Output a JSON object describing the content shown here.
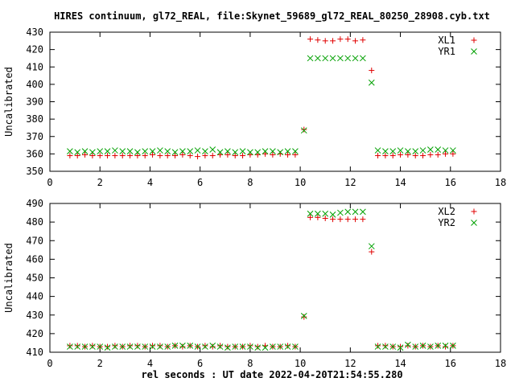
{
  "title": "HIRES continuum, gl72_REAL, file:Skynet_59689_gl72_REAL_80250_28908.cyb.txt",
  "colors": {
    "red": "#e00000",
    "green": "#00a000"
  },
  "chart_data": [
    {
      "type": "scatter",
      "ylabel": "Uncalibrated",
      "xlim": [
        0,
        18
      ],
      "ylim": [
        350,
        430
      ],
      "xticks": [
        0,
        2,
        4,
        6,
        8,
        10,
        12,
        14,
        16,
        18
      ],
      "yticks": [
        350,
        360,
        370,
        380,
        390,
        400,
        410,
        420,
        430
      ],
      "grid": false,
      "legend_position": "top-right",
      "series": [
        {
          "name": "XL1",
          "marker": "plus",
          "color": "#e00000",
          "x": [
            0.8,
            1.1,
            1.4,
            1.7,
            2.0,
            2.3,
            2.6,
            2.9,
            3.2,
            3.5,
            3.8,
            4.1,
            4.4,
            4.7,
            5.0,
            5.3,
            5.6,
            5.9,
            6.2,
            6.5,
            6.8,
            7.1,
            7.4,
            7.7,
            8.0,
            8.3,
            8.6,
            8.9,
            9.2,
            9.5,
            9.8,
            10.15,
            10.4,
            10.7,
            11.0,
            11.3,
            11.6,
            11.9,
            12.2,
            12.5,
            12.85,
            13.1,
            13.4,
            13.7,
            14.0,
            14.3,
            14.6,
            14.9,
            15.2,
            15.5,
            15.8,
            16.1
          ],
          "y": [
            359,
            359,
            359.5,
            359,
            359,
            359,
            359,
            359,
            359,
            359,
            359,
            359.5,
            359,
            359,
            359,
            359.5,
            359,
            358.5,
            359,
            359,
            359.5,
            359.5,
            359,
            359,
            359.5,
            359.5,
            360,
            359.5,
            360,
            359.5,
            359.5,
            374,
            426,
            425.5,
            425,
            425,
            426,
            426,
            425,
            425.5,
            408,
            359,
            359,
            359,
            359.5,
            359.5,
            359,
            359,
            359.5,
            359.5,
            360,
            360
          ]
        },
        {
          "name": "YR1",
          "marker": "cross",
          "color": "#00a000",
          "x": [
            0.8,
            1.1,
            1.4,
            1.7,
            2.0,
            2.3,
            2.6,
            2.9,
            3.2,
            3.5,
            3.8,
            4.1,
            4.4,
            4.7,
            5.0,
            5.3,
            5.6,
            5.9,
            6.2,
            6.5,
            6.8,
            7.1,
            7.4,
            7.7,
            8.0,
            8.3,
            8.6,
            8.9,
            9.2,
            9.5,
            9.8,
            10.15,
            10.4,
            10.7,
            11.0,
            11.3,
            11.6,
            11.9,
            12.2,
            12.5,
            12.85,
            13.1,
            13.4,
            13.7,
            14.0,
            14.3,
            14.6,
            14.9,
            15.2,
            15.5,
            15.8,
            16.1
          ],
          "y": [
            361.5,
            361,
            361.5,
            361,
            361.5,
            361.5,
            362,
            361.5,
            361.5,
            361,
            361.5,
            361.5,
            362,
            361.5,
            361,
            361.5,
            361.5,
            362,
            361.5,
            362.5,
            361,
            361.5,
            361,
            361.5,
            361,
            361,
            361.5,
            361.5,
            361,
            361.5,
            361.5,
            373.5,
            415,
            415,
            415,
            415,
            415,
            415,
            415,
            415,
            401,
            362,
            361.5,
            361.5,
            362,
            361.5,
            361.5,
            362,
            362.5,
            362.5,
            362,
            362
          ]
        }
      ]
    },
    {
      "type": "scatter",
      "ylabel": "Uncalibrated",
      "xlabel": "rel seconds : UT date 2022-04-20T21:54:55.280",
      "xlim": [
        0,
        18
      ],
      "ylim": [
        410,
        490
      ],
      "xticks": [
        0,
        2,
        4,
        6,
        8,
        10,
        12,
        14,
        16,
        18
      ],
      "yticks": [
        410,
        420,
        430,
        440,
        450,
        460,
        470,
        480,
        490
      ],
      "grid": false,
      "legend_position": "top-right",
      "series": [
        {
          "name": "XL2",
          "marker": "plus",
          "color": "#e00000",
          "x": [
            0.8,
            1.1,
            1.4,
            1.7,
            2.0,
            2.3,
            2.6,
            2.9,
            3.2,
            3.5,
            3.8,
            4.1,
            4.4,
            4.7,
            5.0,
            5.3,
            5.6,
            5.9,
            6.2,
            6.5,
            6.8,
            7.1,
            7.4,
            7.7,
            8.0,
            8.3,
            8.6,
            8.9,
            9.2,
            9.5,
            9.8,
            10.15,
            10.4,
            10.7,
            11.0,
            11.3,
            11.6,
            11.9,
            12.2,
            12.5,
            12.85,
            13.1,
            13.4,
            13.7,
            14.0,
            14.3,
            14.6,
            14.9,
            15.2,
            15.5,
            15.8,
            16.1
          ],
          "y": [
            413.5,
            413.5,
            413,
            413.5,
            413,
            413,
            413.5,
            413,
            413.5,
            413.5,
            413,
            413.5,
            413.5,
            413,
            413.5,
            413,
            413.5,
            413,
            413.5,
            413,
            413.5,
            413,
            413,
            413,
            413.5,
            413,
            413.5,
            413,
            413,
            413.5,
            413,
            429,
            482.5,
            482.5,
            482,
            481.5,
            481.5,
            481.5,
            481.5,
            481.5,
            464,
            413.5,
            413.5,
            413,
            413,
            413.5,
            413,
            413.5,
            413,
            413.5,
            413,
            413.5
          ]
        },
        {
          "name": "YR2",
          "marker": "cross",
          "color": "#00a000",
          "x": [
            0.8,
            1.1,
            1.4,
            1.7,
            2.0,
            2.3,
            2.6,
            2.9,
            3.2,
            3.5,
            3.8,
            4.1,
            4.4,
            4.7,
            5.0,
            5.3,
            5.6,
            5.9,
            6.2,
            6.5,
            6.8,
            7.1,
            7.4,
            7.7,
            8.0,
            8.3,
            8.6,
            8.9,
            9.2,
            9.5,
            9.8,
            10.15,
            10.4,
            10.7,
            11.0,
            11.3,
            11.6,
            11.9,
            12.2,
            12.5,
            12.85,
            13.1,
            13.4,
            13.7,
            14.0,
            14.3,
            14.6,
            14.9,
            15.2,
            15.5,
            15.8,
            16.1
          ],
          "y": [
            413,
            413,
            413,
            413,
            413,
            412.5,
            413,
            413,
            413,
            413,
            413,
            413,
            413,
            413,
            413.5,
            413.5,
            413.5,
            413,
            413,
            413.5,
            413,
            412.5,
            413,
            413,
            413,
            412.5,
            412.5,
            413,
            413,
            413,
            413,
            429.5,
            484.5,
            484.5,
            484.5,
            484,
            485,
            485.5,
            485.5,
            485.5,
            467,
            413,
            413,
            413,
            412.5,
            414,
            413,
            413.5,
            413,
            413.5,
            413.5,
            413.5
          ]
        }
      ]
    }
  ]
}
